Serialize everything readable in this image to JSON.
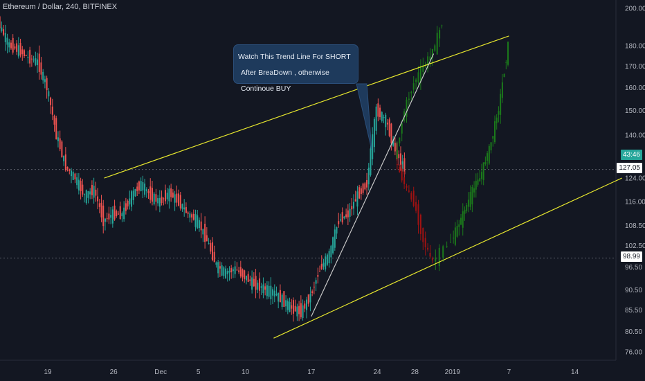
{
  "header": {
    "title": "Ethereum / Dollar, 240, BITFINEX"
  },
  "callout": {
    "line1": "Watch This Trend Line For SHORT",
    "line2": "After BreaDown , otherwise Continoue BUY"
  },
  "price_tags": {
    "current": "43:46",
    "last": "127.05",
    "low": "98.99"
  },
  "colors": {
    "background": "#131722",
    "up": "#26a69a",
    "down": "#ef5350",
    "projection_up": "#1b7a1b",
    "projection_down": "#a01212",
    "trendline": "#e6e62e",
    "support": "#c8c8c8",
    "current_tag": "#26a69a"
  },
  "chart_data": {
    "type": "candlestick",
    "symbol": "Ethereum / Dollar, 240, BITFINEX",
    "y_axis": {
      "ticks": [
        200.0,
        180.0,
        170.0,
        160.0,
        150.0,
        140.0,
        124.0,
        116.0,
        108.5,
        102.5,
        96.5,
        90.5,
        85.5,
        80.5,
        76.0
      ],
      "scale": "log"
    },
    "x_axis": {
      "ticks": [
        "19",
        "26",
        "Dec",
        "5",
        "10",
        "17",
        "24",
        "28",
        "2019",
        "7",
        "14"
      ]
    },
    "series": [
      {
        "kind": "price",
        "points": [
          [
            "Nov 13",
            210
          ],
          [
            "Nov 14",
            190
          ],
          [
            "Nov 15",
            180
          ],
          [
            "Nov 16",
            178
          ],
          [
            "Nov 17",
            174
          ],
          [
            "Nov 18",
            172
          ],
          [
            "Nov 19",
            160
          ],
          [
            "Nov 20",
            140
          ],
          [
            "Nov 21",
            128
          ],
          [
            "Nov 22",
            124
          ],
          [
            "Nov 23",
            118
          ],
          [
            "Nov 24",
            120
          ],
          [
            "Nov 25",
            110
          ],
          [
            "Nov 26",
            112
          ],
          [
            "Nov 27",
            112
          ],
          [
            "Nov 28",
            118
          ],
          [
            "Nov 29",
            122
          ],
          [
            "Nov 30",
            118
          ],
          [
            "Dec 1",
            116
          ],
          [
            "Dec 2",
            119
          ],
          [
            "Dec 3",
            116
          ],
          [
            "Dec 4",
            112
          ],
          [
            "Dec 5",
            110
          ],
          [
            "Dec 6",
            104
          ],
          [
            "Dec 7",
            97
          ],
          [
            "Dec 8",
            95
          ],
          [
            "Dec 9",
            96
          ],
          [
            "Dec 10",
            94
          ],
          [
            "Dec 11",
            92
          ],
          [
            "Dec 12",
            91
          ],
          [
            "Dec 13",
            90
          ],
          [
            "Dec 14",
            88
          ],
          [
            "Dec 15",
            86
          ],
          [
            "Dec 16",
            85
          ],
          [
            "Dec 17",
            89
          ],
          [
            "Dec 18",
            96
          ],
          [
            "Dec 19",
            100
          ],
          [
            "Dec 20",
            110
          ],
          [
            "Dec 21",
            112
          ],
          [
            "Dec 22",
            118
          ],
          [
            "Dec 23",
            122
          ],
          [
            "Dec 24",
            150
          ],
          [
            "Dec 25",
            146
          ],
          [
            "Dec 26",
            134
          ],
          [
            "Dec 27",
            127
          ]
        ]
      },
      {
        "kind": "projection-bull",
        "points": [
          [
            "Dec 26",
            130
          ],
          [
            "Dec 27",
            150
          ],
          [
            "Dec 28",
            162
          ],
          [
            "Dec 29",
            170
          ],
          [
            "Dec 30",
            176
          ],
          [
            "Dec 31",
            192
          ]
        ]
      },
      {
        "kind": "projection-bear",
        "points": [
          [
            "Dec 26",
            130
          ],
          [
            "Dec 27",
            122
          ],
          [
            "Dec 28",
            116
          ],
          [
            "Dec 29",
            104
          ],
          [
            "Dec 30",
            98
          ]
        ]
      },
      {
        "kind": "projection-recovery",
        "points": [
          [
            "Dec 30",
            98
          ],
          [
            "Jan 1",
            104
          ],
          [
            "Jan 2",
            110
          ],
          [
            "Jan 3",
            118
          ],
          [
            "Jan 4",
            124
          ],
          [
            "Jan 5",
            134
          ],
          [
            "Jan 6",
            150
          ],
          [
            "Jan 7",
            180
          ]
        ]
      }
    ],
    "trendlines": [
      {
        "name": "resistance",
        "from": [
          "Nov 25",
          124
        ],
        "to": [
          "Jan 7",
          185
        ]
      },
      {
        "name": "support",
        "from": [
          "Dec 13",
          79
        ],
        "to": [
          "Jan 19",
          124
        ]
      },
      {
        "name": "rising",
        "from": [
          "Dec 17",
          84
        ],
        "to": [
          "Dec 30",
          176
        ]
      }
    ],
    "horizontal_levels": [
      127.05,
      98.99
    ]
  }
}
